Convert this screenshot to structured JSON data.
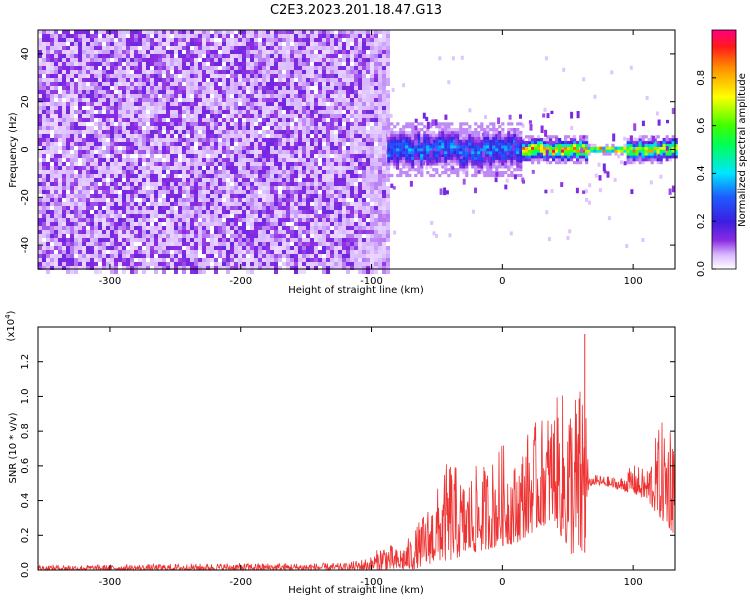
{
  "title": "C2E3.2023.201.18.47.G13",
  "chart_data": [
    {
      "type": "heatmap",
      "xlabel": "Height of straight line (km)",
      "ylabel": "Frequency (Hz)",
      "xlim": [
        -355,
        132
      ],
      "ylim": [
        -50,
        50
      ],
      "x_ticks": [
        -300,
        -200,
        -100,
        0,
        100
      ],
      "y_ticks": [
        -40,
        -20,
        0,
        20,
        40
      ],
      "colorbar": {
        "label": "Normalized spectral amplitude",
        "range": [
          0,
          1
        ],
        "ticks": [
          "0.0",
          "0.2",
          "0.4",
          "0.6",
          "0.8"
        ],
        "colormap": "rainbow (white to violet to red)"
      },
      "regions": [
        {
          "x_range": [
            -355,
            -88
          ],
          "freq_range": [
            -50,
            50
          ],
          "amplitude": 0.05,
          "description": "broadband noise"
        },
        {
          "x_range": [
            -88,
            15
          ],
          "center_freq": 0,
          "half_width_hz": 6,
          "amplitude_peak": 0.35
        },
        {
          "x_range": [
            15,
            65
          ],
          "center_freq": 0,
          "half_width_hz": 3,
          "amplitude_peak": 0.9
        },
        {
          "x_range": [
            65,
            95
          ],
          "center_freq": 0,
          "half_width_hz": 1,
          "amplitude_peak": 1.0
        },
        {
          "x_range": [
            95,
            132
          ],
          "center_freq": 0,
          "half_width_hz": 3,
          "amplitude_peak": 0.8
        }
      ]
    },
    {
      "type": "line",
      "xlabel": "Height of straight line (km)",
      "ylabel": "SNR (10 * v/v)",
      "y_multiplier": "(x10",
      "y_multiplier_exp": "4",
      "xlim": [
        -355,
        132
      ],
      "ylim": [
        0,
        1.4
      ],
      "x_ticks": [
        -300,
        -200,
        -100,
        0,
        100
      ],
      "y_ticks": [
        "0.0",
        "0.2",
        "0.4",
        "0.6",
        "0.8",
        "1.0",
        "1.2"
      ],
      "color": "#ee3333",
      "envelope": {
        "x": [
          -355,
          -300,
          -200,
          -120,
          -110,
          -100,
          -90,
          -80,
          -70,
          -60,
          -50,
          -40,
          -30,
          -20,
          -10,
          0,
          10,
          20,
          30,
          40,
          50,
          60,
          63,
          66,
          70,
          80,
          90,
          100,
          110,
          120,
          132
        ],
        "max": [
          0.03,
          0.03,
          0.04,
          0.04,
          0.06,
          0.08,
          0.17,
          0.12,
          0.2,
          0.33,
          0.47,
          0.67,
          0.52,
          0.6,
          0.62,
          0.74,
          0.62,
          0.82,
          0.88,
          0.98,
          1.06,
          1.08,
          1.36,
          0.52,
          0.55,
          0.54,
          0.53,
          0.61,
          0.58,
          0.84,
          0.95
        ],
        "min": [
          0.0,
          0.0,
          0.0,
          0.0,
          0.0,
          0.0,
          0.0,
          0.0,
          0.0,
          0.02,
          0.05,
          0.05,
          0.08,
          0.1,
          0.12,
          0.14,
          0.15,
          0.2,
          0.25,
          0.28,
          0.1,
          0.05,
          0.08,
          0.48,
          0.49,
          0.48,
          0.46,
          0.44,
          0.4,
          0.3,
          0.2
        ]
      }
    }
  ]
}
